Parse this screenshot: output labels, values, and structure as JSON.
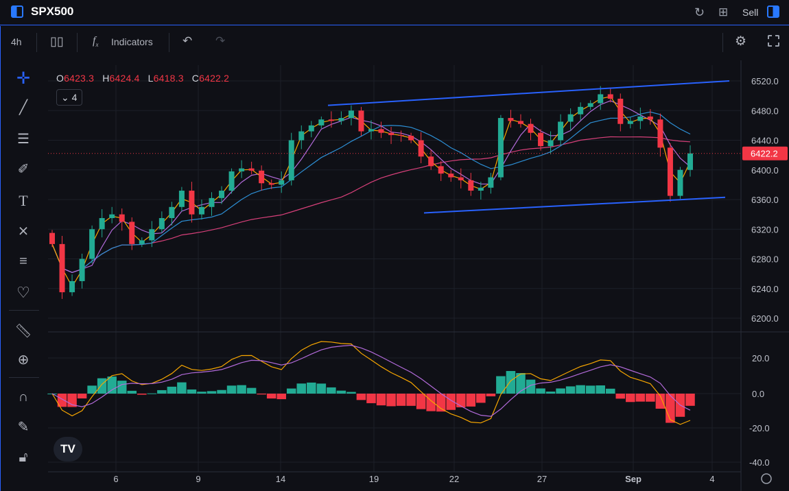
{
  "header": {
    "symbol": "SPX500",
    "sell_label": "Sell",
    "icons": [
      "refresh-icon",
      "layout-grid-icon"
    ]
  },
  "toolbar": {
    "interval": "4h",
    "chart_type_icon": "candles-icon",
    "indicators_label": "Indicators",
    "undo_icon": "undo-icon",
    "redo_icon": "redo-icon",
    "settings_icon": "gear-icon",
    "fullscreen_icon": "fullscreen-icon"
  },
  "legend": {
    "o_label": "O",
    "o": "6423.3",
    "h_label": "H",
    "h": "6424.4",
    "l_label": "L",
    "l": "6418.3",
    "c_label": "C",
    "c": "6422.2",
    "collapse_count": "4"
  },
  "sidebar": {
    "tools": [
      "crosshair-icon",
      "trend-line-icon",
      "horizontal-lines-icon",
      "brush-icon",
      "text-icon",
      "pattern-icon",
      "fib-icon",
      "heart-icon",
      "ruler-icon",
      "zoom-in-icon",
      "magnet-icon",
      "pencil-lock-icon",
      "lock-icon"
    ]
  },
  "colors": {
    "up": "#22ab94",
    "down": "#f23645",
    "accent": "#2962ff",
    "ma_fast": "#f7a600",
    "ma_mid": "#b36bdb",
    "ma_slow": "#2d8fd5",
    "ma_long": "#d8407a",
    "trend_line": "#2962ff",
    "macd": "#f7a600",
    "signal": "#b36bdb"
  },
  "chart_data": {
    "type": "candlestick",
    "price_axis": {
      "ticks": [
        "6520.0",
        "6480.0",
        "6440.0",
        "6400.0",
        "6360.0",
        "6320.0",
        "6280.0",
        "6240.0",
        "6200.0"
      ],
      "range": [
        6180,
        6540
      ]
    },
    "last_price": "6422.2",
    "x_ticks": [
      "6",
      "9",
      "14",
      "19",
      "22",
      "27",
      "Sep",
      "4"
    ],
    "closes": [
      6300,
      6235,
      6250,
      6280,
      6320,
      6335,
      6340,
      6330,
      6300,
      6305,
      6320,
      6335,
      6350,
      6372,
      6340,
      6350,
      6362,
      6372,
      6398,
      6402,
      6399,
      6382,
      6380,
      6386,
      6440,
      6452,
      6460,
      6468,
      6466,
      6470,
      6480,
      6452,
      6455,
      6450,
      6447,
      6446,
      6440,
      6418,
      6405,
      6395,
      6390,
      6386,
      6372,
      6376,
      6390,
      6470,
      6466,
      6462,
      6450,
      6432,
      6440,
      6465,
      6475,
      6485,
      6490,
      6502,
      6496,
      6462,
      6466,
      6472,
      6468,
      6430,
      6365,
      6400,
      6422.2
    ],
    "trend_lines": [
      {
        "from_price": 6487,
        "to_price": 6520
      },
      {
        "from_price": 6342,
        "to_price": 6363
      }
    ],
    "macd_axis": {
      "ticks": [
        "20.0",
        "0.0",
        "-20.0",
        "-40.0"
      ],
      "range": [
        -48,
        34
      ]
    }
  }
}
